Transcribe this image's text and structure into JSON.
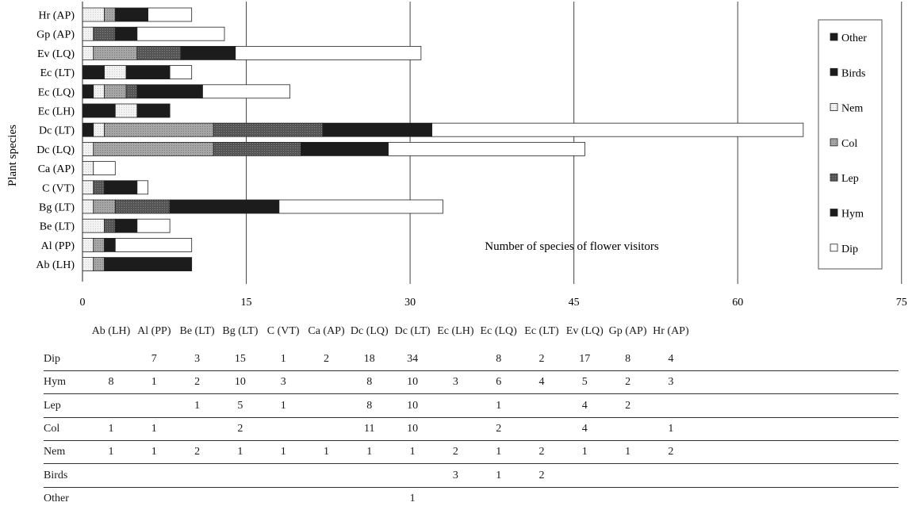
{
  "chart_data": {
    "type": "bar",
    "orientation": "horizontal",
    "stacked": true,
    "ylabel": "Plant species",
    "xlabel": "Number of species of flower visitors",
    "xlim": [
      0,
      75
    ],
    "xticks": [
      0,
      15,
      30,
      45,
      60,
      75
    ],
    "grid": "vertical",
    "legend_position": "right",
    "categories": [
      "Ab (LH)",
      "Al (PP)",
      "Be (LT)",
      "Bg (LT)",
      "C (VT)",
      "Ca (AP)",
      "Dc (LQ)",
      "Dc (LT)",
      "Ec (LH)",
      "Ec (LQ)",
      "Ec (LT)",
      "Ev (LQ)",
      "Gp (AP)",
      "Hr (AP)"
    ],
    "series": [
      {
        "name": "Dip",
        "values": [
          null,
          7,
          3,
          15,
          1,
          2,
          18,
          34,
          null,
          8,
          2,
          17,
          8,
          4
        ]
      },
      {
        "name": "Hym",
        "values": [
          8,
          1,
          2,
          10,
          3,
          null,
          8,
          10,
          3,
          6,
          4,
          5,
          2,
          3
        ]
      },
      {
        "name": "Lep",
        "values": [
          null,
          null,
          1,
          5,
          1,
          null,
          8,
          10,
          null,
          1,
          null,
          4,
          2,
          null
        ]
      },
      {
        "name": "Col",
        "values": [
          1,
          1,
          null,
          2,
          null,
          null,
          11,
          10,
          null,
          2,
          null,
          4,
          null,
          1
        ]
      },
      {
        "name": "Nem",
        "values": [
          1,
          1,
          2,
          1,
          1,
          1,
          1,
          1,
          2,
          1,
          2,
          1,
          1,
          2
        ]
      },
      {
        "name": "Birds",
        "values": [
          null,
          null,
          null,
          null,
          null,
          null,
          null,
          null,
          3,
          1,
          2,
          null,
          null,
          null
        ]
      },
      {
        "name": "Other",
        "values": [
          null,
          null,
          null,
          null,
          null,
          null,
          null,
          1,
          null,
          null,
          null,
          null,
          null,
          null
        ]
      }
    ],
    "legend_order": [
      "Other",
      "Birds",
      "Nem",
      "Col",
      "Lep",
      "Hym",
      "Dip"
    ],
    "colors": {
      "Dip": "#ffffff",
      "Hym": "#1c1c1c",
      "Lep": "#5e5e5e",
      "Col": "#a8a8a8",
      "Nem": "#eeeeee",
      "Birds": "#1c1c1c",
      "Other": "#1c1c1c"
    }
  }
}
